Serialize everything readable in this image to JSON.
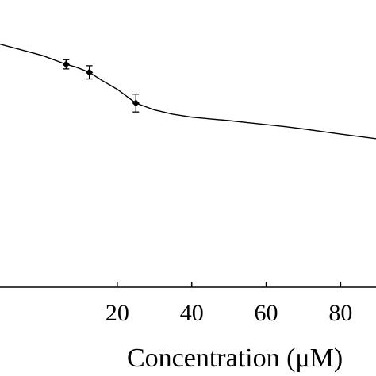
{
  "chart_data": {
    "type": "line",
    "xlabel": "Concentration (μM)",
    "ylabel": "",
    "xlim": [
      -11.5,
      89.5
    ],
    "ylim": [
      0,
      1
    ],
    "x_ticks": [
      20,
      40,
      60,
      80
    ],
    "x_tick_labels": [
      "20",
      "40",
      "60",
      "80"
    ],
    "grid": false,
    "legend": "none",
    "marker": "diamond",
    "line_color": "#000000",
    "series": [
      {
        "points": [
          {
            "x": 6.25,
            "y": 0.776,
            "err": 0.016
          },
          {
            "x": 12.5,
            "y": 0.748,
            "err": 0.023
          },
          {
            "x": 25,
            "y": 0.641,
            "err": 0.031
          }
        ]
      }
    ],
    "curve": [
      {
        "x": -11.5,
        "y": 0.846
      },
      {
        "x": 0,
        "y": 0.806
      },
      {
        "x": 6.25,
        "y": 0.776
      },
      {
        "x": 9,
        "y": 0.766
      },
      {
        "x": 12.5,
        "y": 0.748
      },
      {
        "x": 16,
        "y": 0.719
      },
      {
        "x": 20,
        "y": 0.689
      },
      {
        "x": 25,
        "y": 0.641
      },
      {
        "x": 30,
        "y": 0.617
      },
      {
        "x": 35,
        "y": 0.602
      },
      {
        "x": 40,
        "y": 0.592
      },
      {
        "x": 45,
        "y": 0.586
      },
      {
        "x": 50,
        "y": 0.58
      },
      {
        "x": 55,
        "y": 0.573
      },
      {
        "x": 60,
        "y": 0.566
      },
      {
        "x": 65,
        "y": 0.559
      },
      {
        "x": 70,
        "y": 0.551
      },
      {
        "x": 75,
        "y": 0.542
      },
      {
        "x": 80,
        "y": 0.533
      },
      {
        "x": 89.5,
        "y": 0.517
      }
    ]
  }
}
